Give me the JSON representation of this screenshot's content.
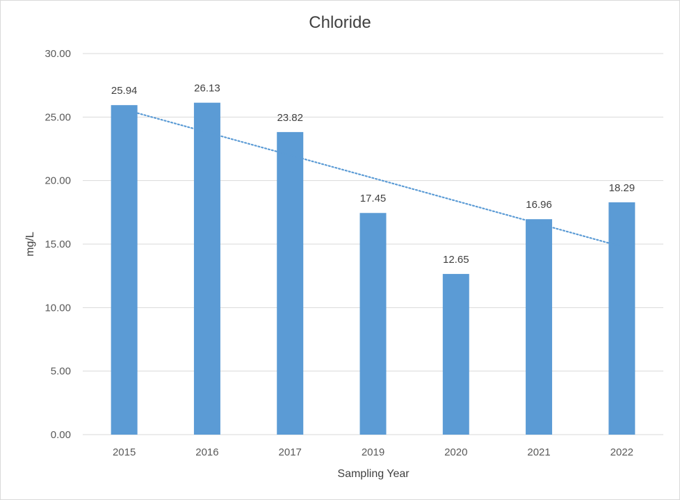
{
  "chart_data": {
    "type": "bar",
    "title": "Chloride",
    "xlabel": "Sampling Year",
    "ylabel": "mg/L",
    "categories": [
      "2015",
      "2016",
      "2017",
      "2019",
      "2020",
      "2021",
      "2022"
    ],
    "values": [
      25.94,
      26.13,
      23.82,
      17.45,
      12.65,
      16.96,
      18.29
    ],
    "data_labels": [
      "25.94",
      "26.13",
      "23.82",
      "17.45",
      "12.65",
      "16.96",
      "18.29"
    ],
    "ylim": [
      0,
      30
    ],
    "yticks": [
      "0.00",
      "5.00",
      "10.00",
      "15.00",
      "20.00",
      "25.00",
      "30.00"
    ],
    "grid": true,
    "trendline": {
      "type": "linear",
      "style": "dotted",
      "start": 25.6,
      "end": 14.8
    },
    "colors": {
      "bar": "#5b9bd5",
      "trendline": "#5b9bd5",
      "grid": "#d9d9d9"
    }
  }
}
